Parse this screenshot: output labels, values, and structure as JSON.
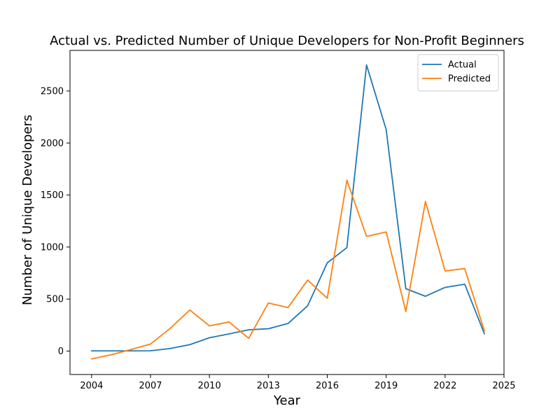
{
  "chart_data": {
    "type": "line",
    "title": "Actual vs. Predicted Number of Unique Developers for Non-Profit Beginners",
    "xlabel": "Year",
    "ylabel": "Number of Unique Developers",
    "xlim": [
      2002.9,
      2025.0
    ],
    "ylim": [
      -225,
      2890
    ],
    "xticks": [
      2004,
      2007,
      2010,
      2013,
      2016,
      2019,
      2022,
      2025
    ],
    "yticks": [
      0,
      500,
      1000,
      1500,
      2000,
      2500
    ],
    "grid": false,
    "legend_position": "top-right",
    "x": [
      2004,
      2005,
      2006,
      2007,
      2008,
      2009,
      2010,
      2011,
      2012,
      2013,
      2014,
      2015,
      2016,
      2017,
      2018,
      2019,
      2020,
      2021,
      2022,
      2023,
      2024
    ],
    "series": [
      {
        "name": "Actual",
        "color": "#1f77b4",
        "values": [
          2,
          2,
          2,
          3,
          25,
          62,
          128,
          165,
          205,
          215,
          265,
          435,
          848,
          995,
          2750,
          2130,
          600,
          527,
          612,
          643,
          167
        ]
      },
      {
        "name": "Predicted",
        "color": "#ff7f0e",
        "values": [
          -75,
          -35,
          15,
          68,
          218,
          395,
          242,
          280,
          123,
          462,
          418,
          682,
          508,
          1642,
          1102,
          1145,
          380,
          1438,
          770,
          793,
          195
        ]
      }
    ]
  }
}
